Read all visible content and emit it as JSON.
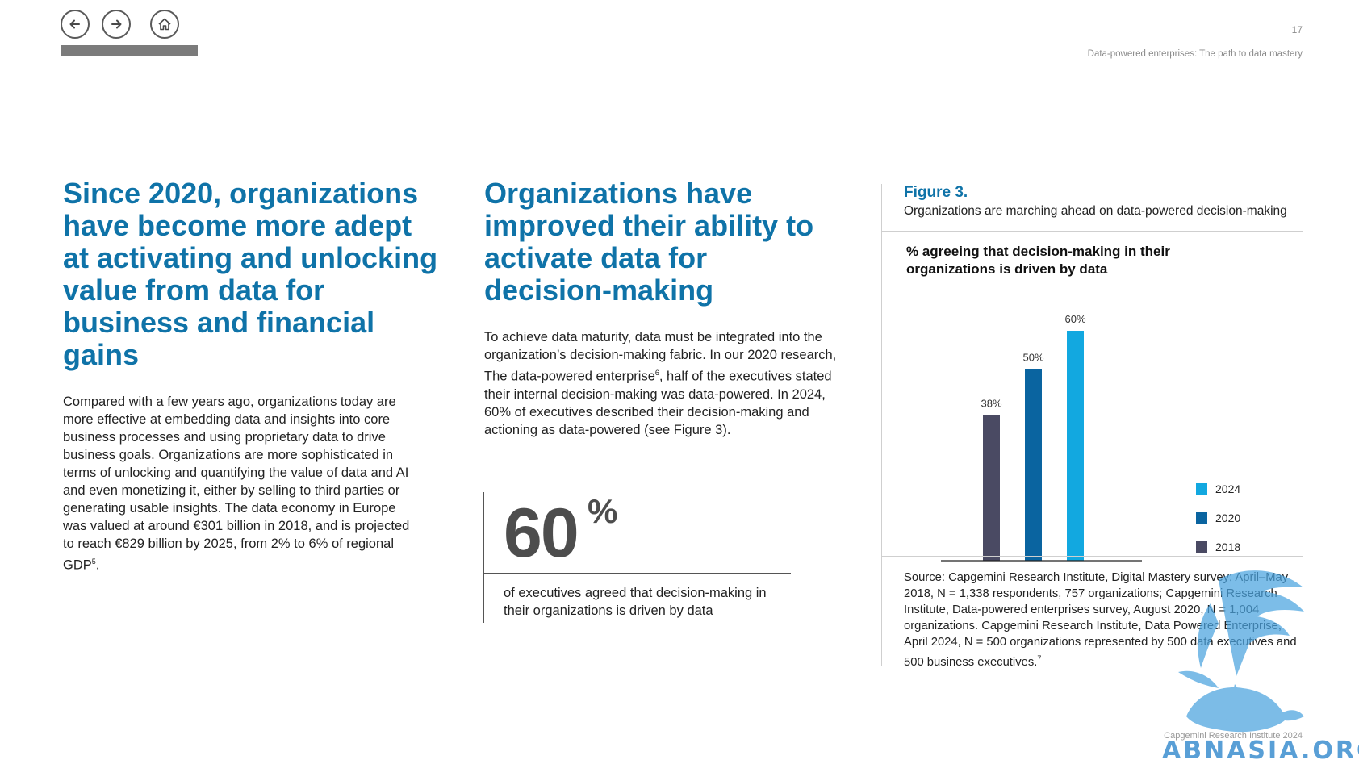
{
  "nav": {
    "back_icon": "arrow-left-icon",
    "forward_icon": "arrow-right-icon",
    "home_icon": "home-icon"
  },
  "header": {
    "page_number": "17",
    "running_title": "Data-powered enterprises: The path to data mastery",
    "progress_fraction": 0.11
  },
  "left_column": {
    "heading": "Since 2020, organizations have become more adept at activating and unlocking value from data for business and financial gains",
    "body_pre": "Compared with a few years ago, organizations today are more effective at embedding data and insights into core business processes and using proprietary data to drive business goals. Organizations are more sophisticated in terms of unlocking and quantifying the value of data and AI and even monetizing it, either by selling to third parties or generating usable insights. The data economy in Europe was valued at around €301 billion in 2018, and is projected to reach €829 billion by 2025, from 2% to 6% of regional GDP",
    "body_sup": "5",
    "body_post": "."
  },
  "middle_column": {
    "heading": "Organizations have improved their ability to activate data for decision-making",
    "body_pre": "To achieve data maturity, data must be integrated into the organization’s decision-making fabric. In our 2020 research, The data-powered enterprise",
    "body_sup": "6",
    "body_post": ",  half of the executives stated their internal decision-making was data-powered. In 2024, 60% of executives described their decision-making and actioning as data-powered (see Figure 3).",
    "stat_value": "60",
    "stat_unit": "%",
    "stat_text": "of executives agreed that decision-making in their organizations is driven by data"
  },
  "figure": {
    "label": "Figure 3.",
    "caption": "Organizations are marching ahead on data-powered decision-making",
    "source_pre": "Source: Capgemini Research Institute, Digital Mastery survey; April–May 2018, N = 1,338 respondents, 757 organizations; Capgemini Research Institute, Data-powered enterprises survey, August 2020, N = 1,004 organizations. Capgemini Research Institute, Data Powered Enterprise, April 2024, N = 500 organizations represented by 500 data executives and 500 business executives.",
    "source_sup": "7"
  },
  "chart_data": {
    "type": "bar",
    "title": "% agreeing that decision-making in their organizations is driven by data",
    "categories": [
      "2018",
      "2020",
      "2024"
    ],
    "values": [
      38,
      50,
      60
    ],
    "labels": [
      "38%",
      "50%",
      "60%"
    ],
    "colors": [
      "#4a4a63",
      "#0a64a0",
      "#12a8e0"
    ],
    "ylim": [
      0,
      60
    ],
    "legend": [
      {
        "name": "2024",
        "color": "#12a8e0"
      },
      {
        "name": "2020",
        "color": "#0a64a0"
      },
      {
        "name": "2018",
        "color": "#4a4a63"
      }
    ],
    "legend_position": "right",
    "grid": false
  },
  "footer": {
    "text": "Capgemini Research Institute 2024"
  },
  "watermark": {
    "text": "ABNASIA.ORG"
  }
}
